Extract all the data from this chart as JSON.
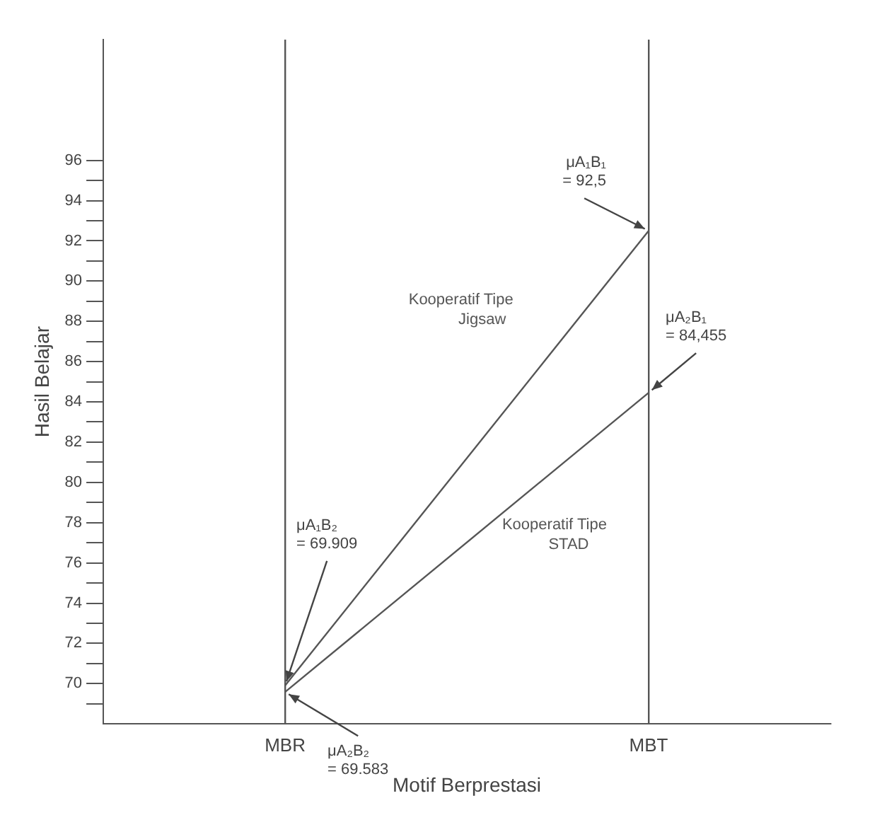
{
  "chart_data": {
    "type": "line",
    "xlabel": "Motif Berprestasi",
    "ylabel": "Hasil Belajar",
    "categories": [
      "MBR",
      "MBT"
    ],
    "series": [
      {
        "name": "Kooperatif Tipe Jigsaw",
        "color": "#555555",
        "values": [
          69.909,
          92.5
        ]
      },
      {
        "name": "Kooperatif Tipe STAD",
        "color": "#555555",
        "values": [
          69.583,
          84.455
        ]
      }
    ],
    "ylim": [
      68,
      102
    ],
    "yticks": [
      {
        "value": 69,
        "label": null
      },
      70,
      {
        "value": 71,
        "label": null
      },
      72,
      {
        "value": 73,
        "label": null
      },
      74,
      {
        "value": 75,
        "label": null
      },
      76,
      {
        "value": 77,
        "label": null
      },
      78,
      {
        "value": 79,
        "label": null
      },
      80,
      {
        "value": 81,
        "label": null
      },
      82,
      {
        "value": 83,
        "label": null
      },
      84,
      {
        "value": 85,
        "label": null
      },
      86,
      {
        "value": 87,
        "label": null
      },
      88,
      {
        "value": 89,
        "label": null
      },
      90,
      {
        "value": 91,
        "label": null
      },
      92,
      {
        "value": 93,
        "label": null
      },
      94,
      {
        "value": 95,
        "label": null
      },
      96
    ],
    "grid": "x",
    "marker": "none",
    "line_style": "solid",
    "legend": false,
    "annotations": [
      {
        "text": "μA₁B₁\n= 92,5",
        "x": "MBT",
        "y": 92.5
      },
      {
        "text": "μA₂B₁\n= 84,455",
        "x": "MBT",
        "y": 84.455
      },
      {
        "text": "μA₁B₂\n= 69.909",
        "x": "MBR",
        "y": 69.909
      },
      {
        "text": "μA₂B₂\n= 69.583",
        "x": "MBR",
        "y": 69.583
      }
    ]
  }
}
